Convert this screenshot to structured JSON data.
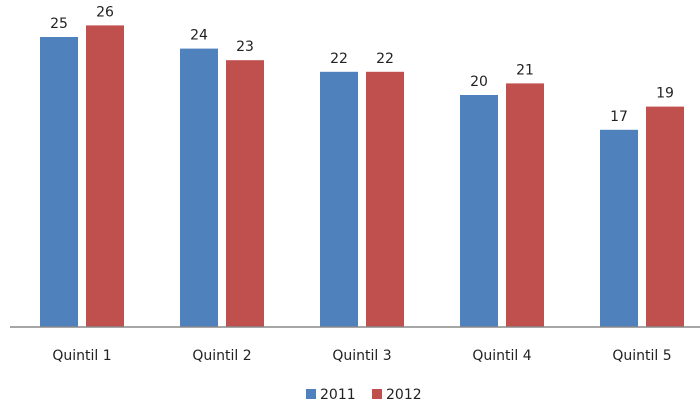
{
  "chart_data": {
    "type": "bar",
    "title": "",
    "xlabel": "",
    "ylabel": "",
    "categories": [
      "Quintil 1",
      "Quintil 2",
      "Quintil 3",
      "Quintil 4",
      "Quintil 5"
    ],
    "series": [
      {
        "name": "2011",
        "values": [
          25,
          24,
          22,
          20,
          17
        ],
        "color": "#4F81BD"
      },
      {
        "name": "2012",
        "values": [
          26,
          23,
          22,
          21,
          19
        ],
        "color": "#C0504D"
      }
    ],
    "ylim": [
      0,
      28
    ],
    "grid": false,
    "legend_position": "bottom"
  }
}
